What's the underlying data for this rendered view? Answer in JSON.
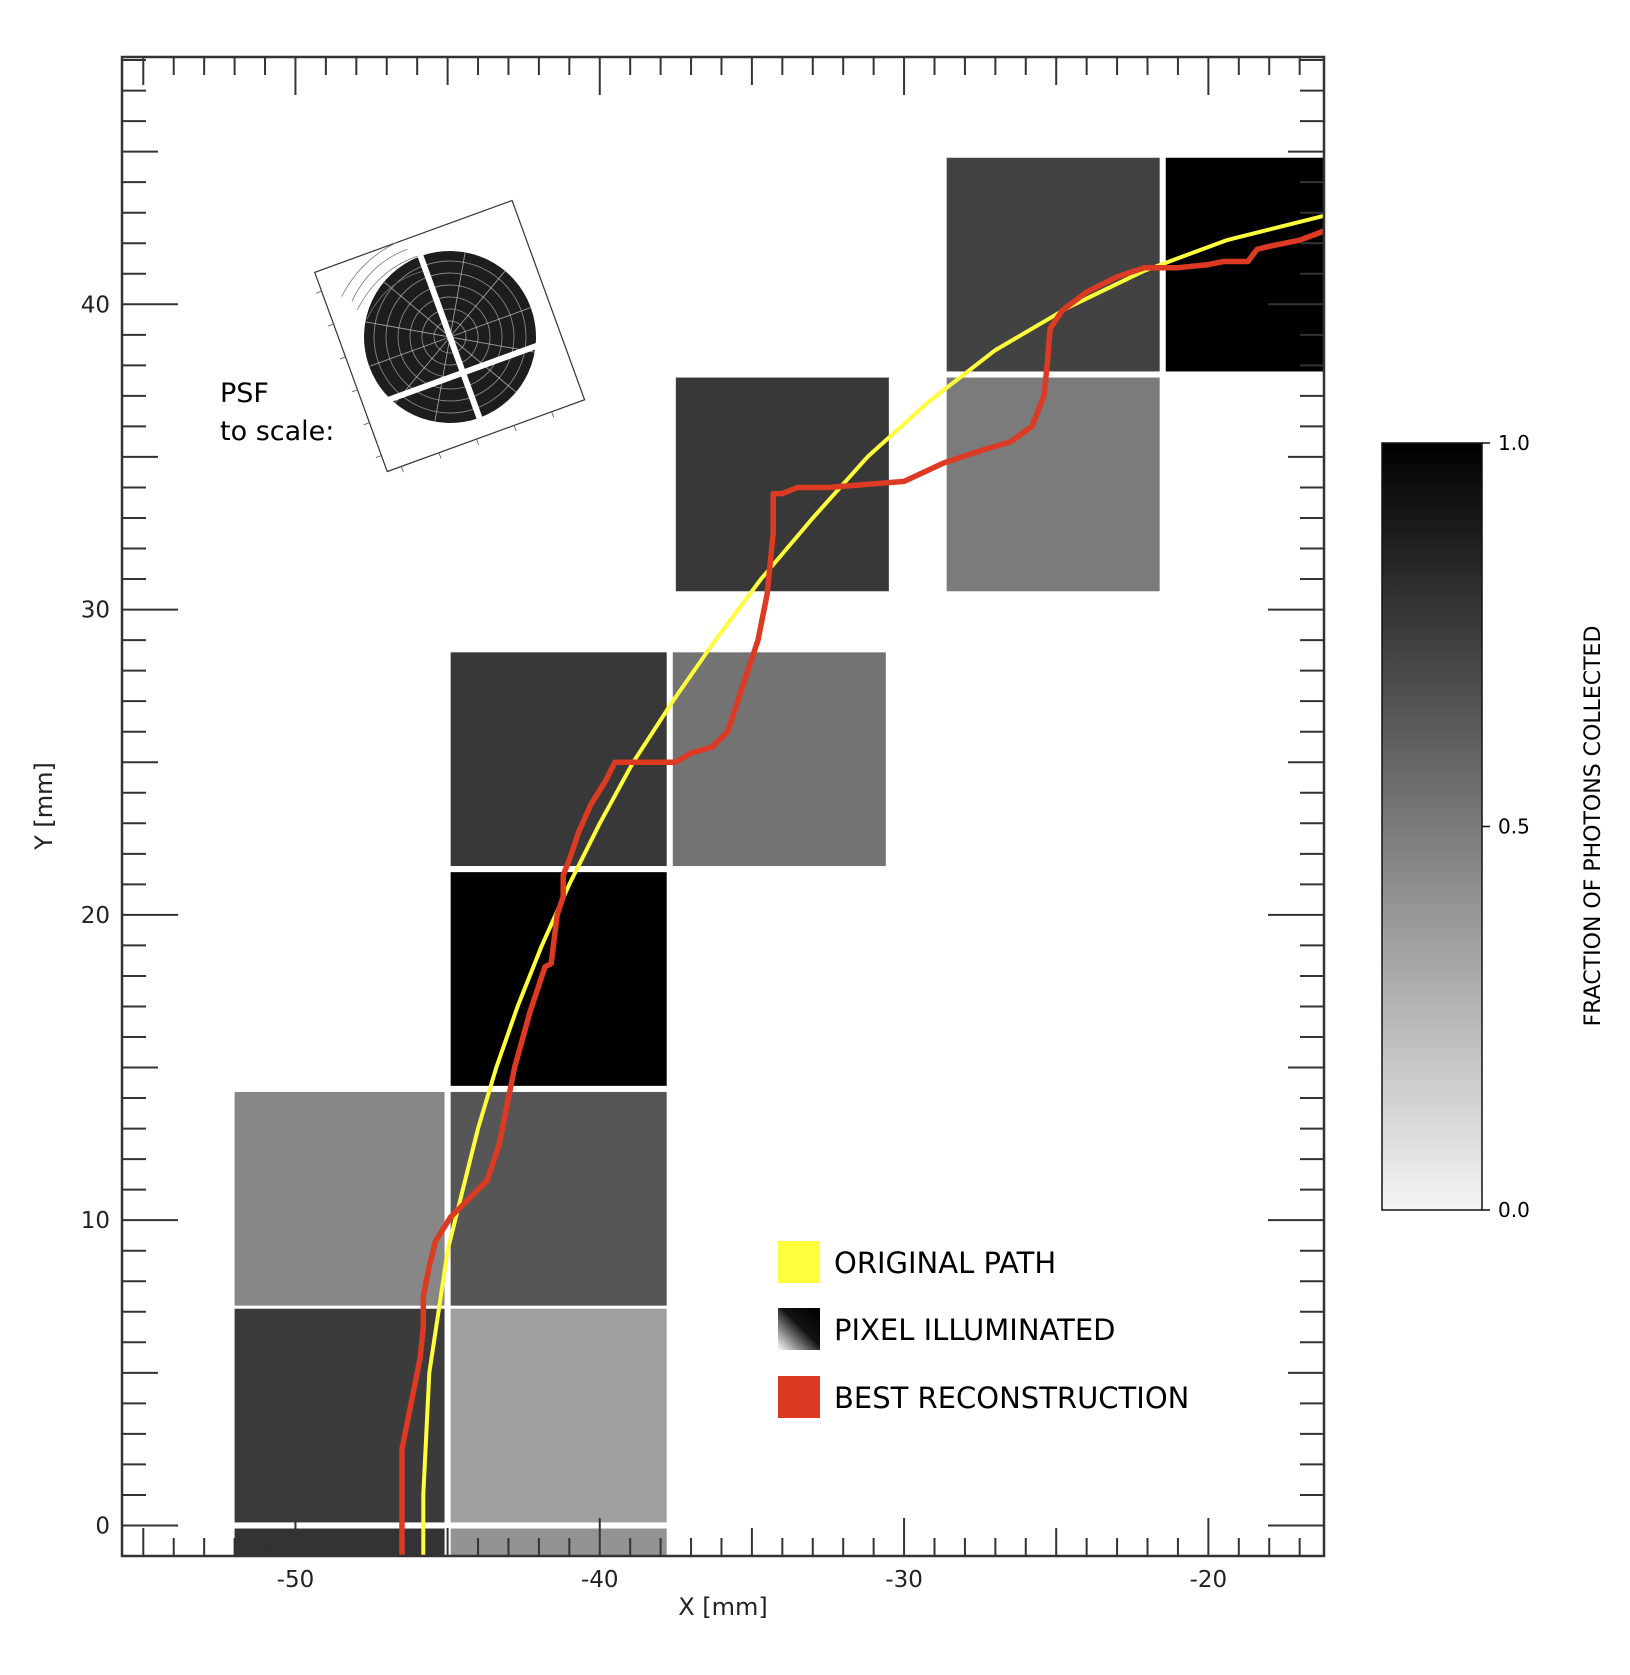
{
  "chart_data": {
    "type": "line",
    "xlabel": "X [mm]",
    "ylabel": "Y [mm]",
    "xlim": [
      -55.7,
      -16.2
    ],
    "ylim": [
      -1.0,
      48.1
    ],
    "x_ticks": [
      -50,
      -40,
      -30,
      -20
    ],
    "y_ticks": [
      0,
      10,
      20,
      30,
      40
    ],
    "grid": false,
    "legend_position": "bottom-right",
    "legend": [
      {
        "label": "ORIGINAL PATH",
        "color": "#ffff3c",
        "kind": "swatch"
      },
      {
        "label": "PIXEL ILLUMINATED",
        "kind": "gradient"
      },
      {
        "label": "BEST RECONSTRUCTION",
        "color": "#dc3a22",
        "kind": "swatch"
      }
    ],
    "pixels": [
      {
        "x0": -52.0,
        "x1": -45.1,
        "y0": 7.2,
        "y1": 14.2,
        "value": 0.45
      },
      {
        "x0": -52.0,
        "x1": -45.1,
        "y0": 0.1,
        "y1": 7.1,
        "value": 0.76
      },
      {
        "x0": -52.0,
        "x1": -45.1,
        "y0": -1.0,
        "y1": -0.1,
        "value": 0.79
      },
      {
        "x0": -44.9,
        "x1": -37.8,
        "y0": 7.2,
        "y1": 14.2,
        "value": 0.65
      },
      {
        "x0": -44.9,
        "x1": -37.8,
        "y0": 0.1,
        "y1": 7.1,
        "value": 0.35
      },
      {
        "x0": -44.9,
        "x1": -37.8,
        "y0": -1.0,
        "y1": -0.1,
        "value": 0.4
      },
      {
        "x0": -44.9,
        "x1": -37.8,
        "y0": 14.4,
        "y1": 21.4,
        "value": 1.0
      },
      {
        "x0": -44.9,
        "x1": -37.8,
        "y0": 21.6,
        "y1": 28.6,
        "value": 0.77
      },
      {
        "x0": -37.6,
        "x1": -30.6,
        "y0": 21.6,
        "y1": 28.6,
        "value": 0.53
      },
      {
        "x0": -37.5,
        "x1": -30.5,
        "y0": 30.6,
        "y1": 37.6,
        "value": 0.77
      },
      {
        "x0": -28.6,
        "x1": -21.6,
        "y0": 30.6,
        "y1": 37.6,
        "value": 0.5
      },
      {
        "x0": -28.6,
        "x1": -21.6,
        "y0": 37.8,
        "y1": 44.8,
        "value": 0.73
      },
      {
        "x0": -21.4,
        "x1": -16.2,
        "y0": 37.8,
        "y1": 44.8,
        "value": 1.0
      }
    ],
    "series": [
      {
        "name": "ORIGINAL PATH",
        "color": "#ffff3c",
        "x": [
          -45.8,
          -45.8,
          -45.7,
          -45.6,
          -45.3,
          -45.0,
          -44.5,
          -44.0,
          -43.4,
          -42.7,
          -41.9,
          -41.0,
          -40.0,
          -38.9,
          -37.6,
          -36.2,
          -34.7,
          -33.0,
          -31.2,
          -29.2,
          -27.0,
          -24.6,
          -22.1,
          -19.4,
          -16.2
        ],
        "y": [
          -1.0,
          1.0,
          3.0,
          5.0,
          7.0,
          9.0,
          11.0,
          13.0,
          15.0,
          17.0,
          19.0,
          21.0,
          23.0,
          25.0,
          27.0,
          29.0,
          31.0,
          33.0,
          35.0,
          36.8,
          38.5,
          39.9,
          41.1,
          42.1,
          42.9
        ]
      },
      {
        "name": "BEST RECONSTRUCTION",
        "color": "#dc3a22",
        "x": [
          -46.5,
          -46.5,
          -46.3,
          -46.2,
          -45.9,
          -45.8,
          -45.8,
          -45.6,
          -45.4,
          -44.9,
          -44.4,
          -44.0,
          -43.7,
          -43.3,
          -43.1,
          -42.8,
          -42.3,
          -41.8,
          -41.6,
          -41.4,
          -41.2,
          -41.2,
          -41.0,
          -40.7,
          -40.3,
          -39.8,
          -39.5,
          -38.0,
          -37.5,
          -37.0,
          -36.3,
          -35.8,
          -35.3,
          -34.8,
          -34.5,
          -34.3,
          -34.3,
          -34.0,
          -33.5,
          -32.5,
          -30.0,
          -28.7,
          -27.5,
          -26.5,
          -25.8,
          -25.4,
          -25.3,
          -25.2,
          -24.8,
          -24.0,
          -23.0,
          -22.1,
          -21.0,
          -20.0,
          -19.5,
          -18.7,
          -18.4,
          -18.0,
          -17.0,
          -16.2
        ],
        "y": [
          -1.0,
          2.5,
          3.5,
          4.0,
          5.5,
          6.5,
          7.5,
          8.5,
          9.3,
          10.1,
          10.6,
          11.0,
          11.3,
          12.5,
          13.5,
          15.0,
          16.8,
          18.3,
          18.4,
          20.0,
          20.6,
          21.3,
          21.8,
          22.7,
          23.6,
          24.4,
          25.0,
          25.0,
          25.0,
          25.3,
          25.5,
          26.0,
          27.5,
          29.0,
          30.5,
          32.5,
          33.8,
          33.8,
          34.0,
          34.0,
          34.2,
          34.8,
          35.2,
          35.5,
          36.0,
          37.0,
          38.0,
          39.2,
          39.8,
          40.4,
          40.9,
          41.2,
          41.2,
          41.3,
          41.4,
          41.4,
          41.8,
          41.9,
          42.1,
          42.4
        ]
      }
    ],
    "annotation": {
      "line1": "PSF",
      "line2": "to scale:"
    },
    "colorbar": {
      "label": "FRACTION OF PHOTONS COLLECTED",
      "ticks": [
        0.0,
        0.5,
        1.0
      ],
      "tick_labels": [
        "0.0",
        "0.5",
        "1.0"
      ],
      "range": [
        0.0,
        1.0
      ],
      "color_low": "#f5f5f5",
      "color_high": "#000000"
    }
  }
}
